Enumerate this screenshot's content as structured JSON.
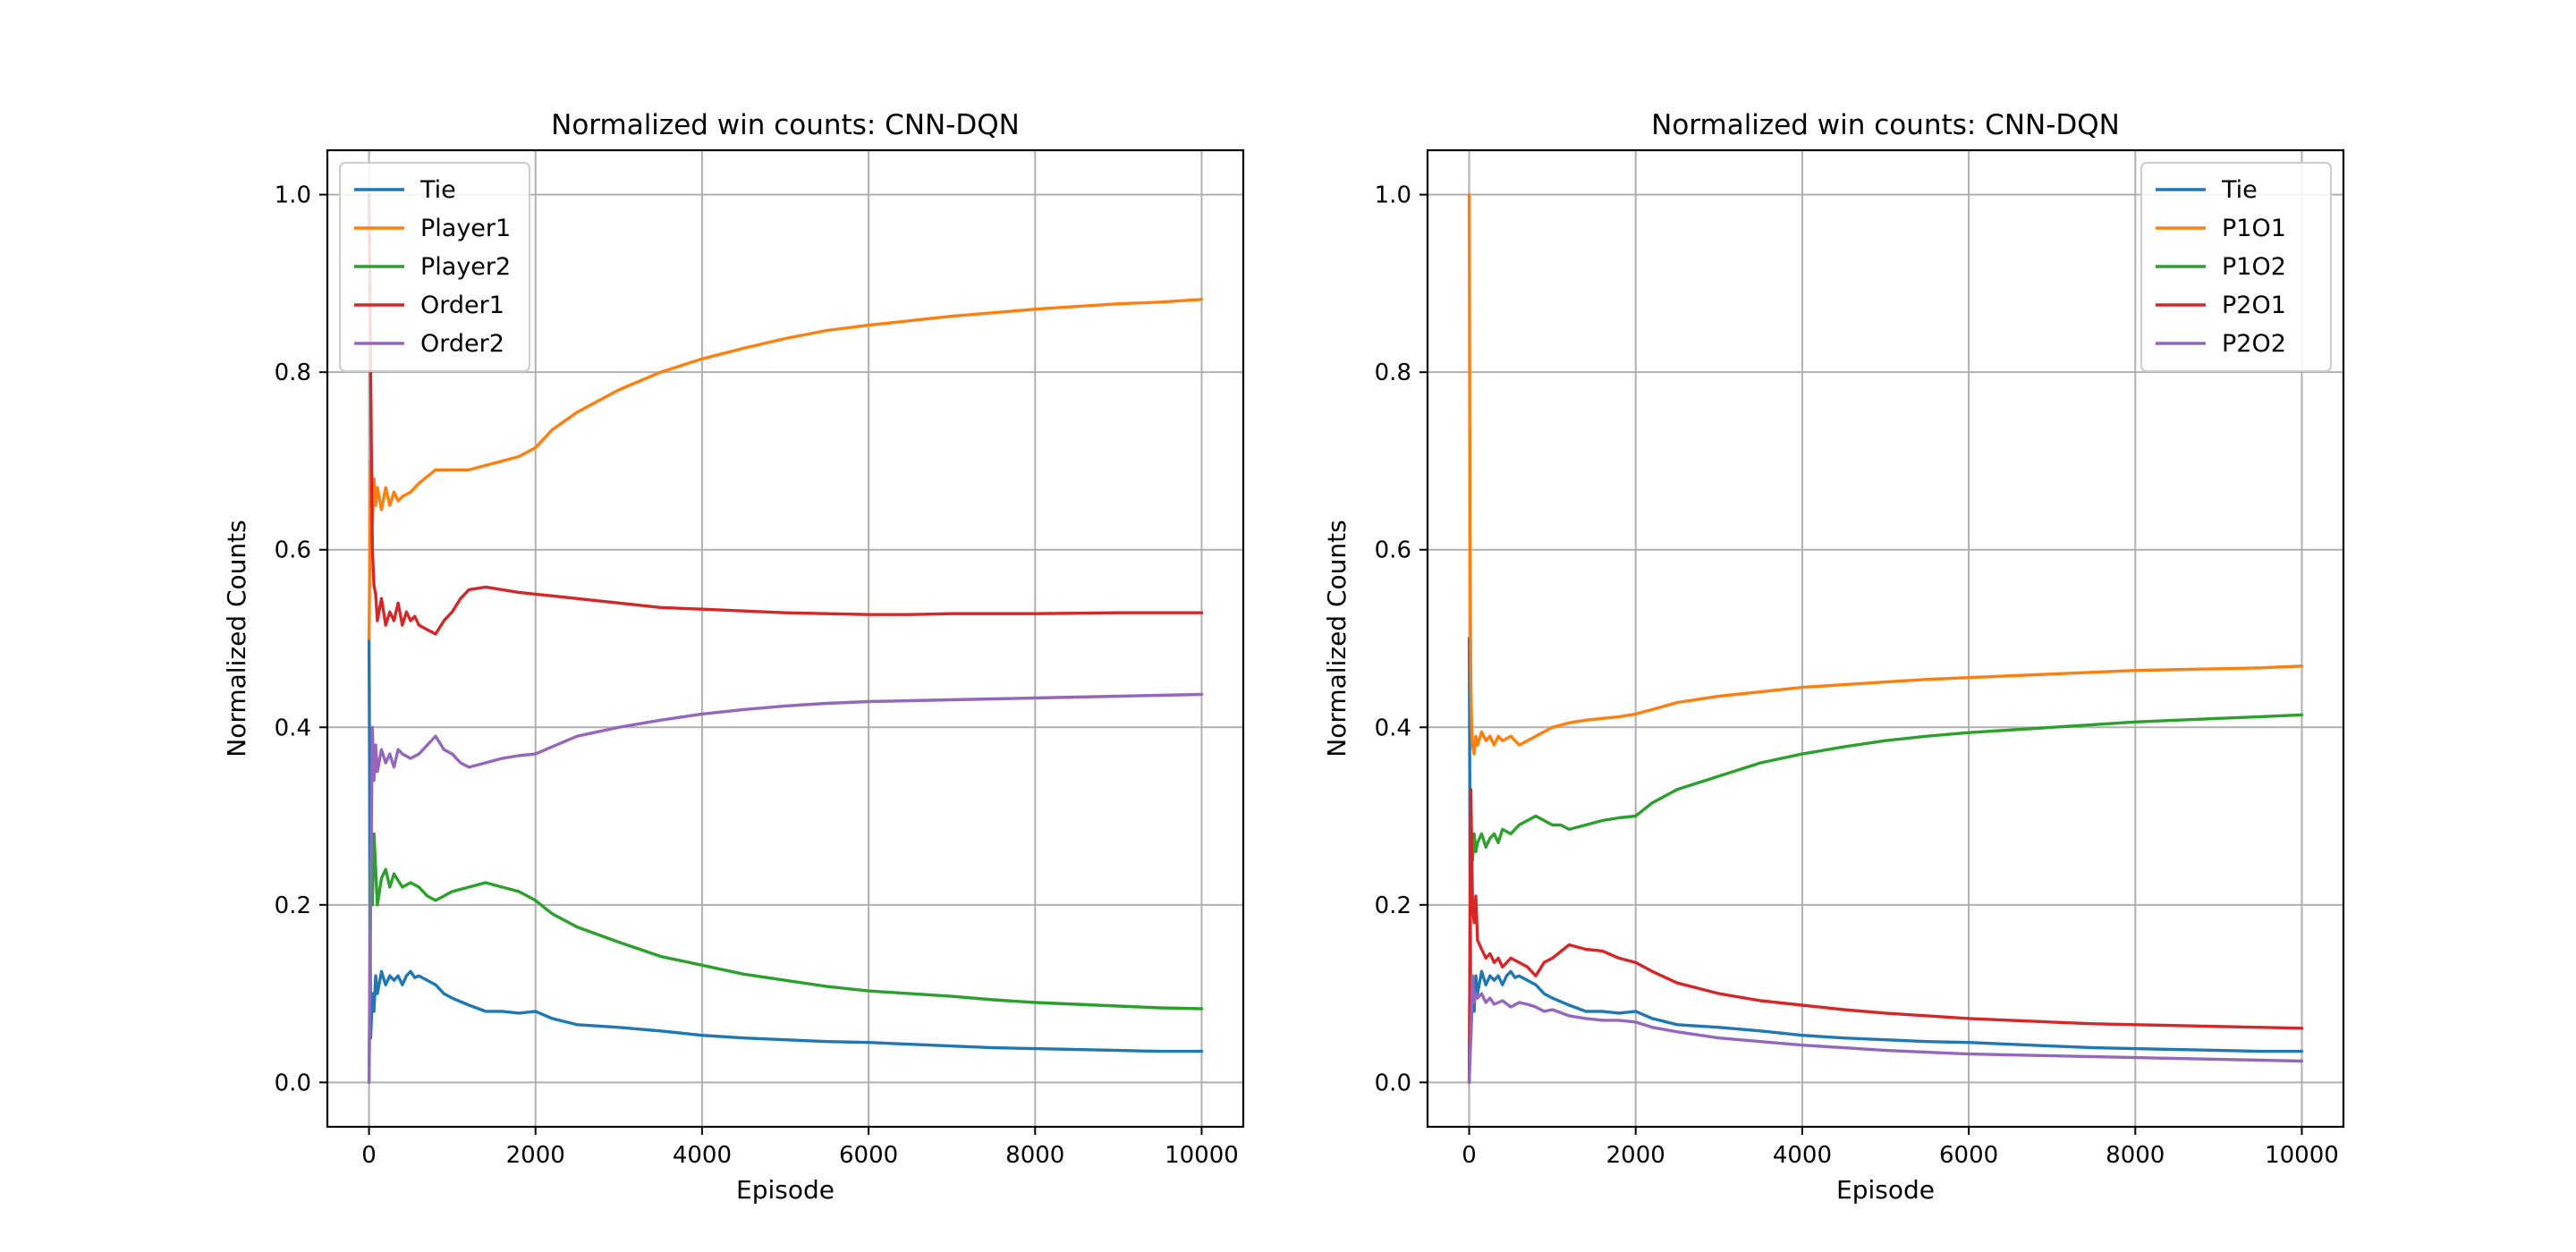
{
  "chart_data": [
    {
      "type": "line",
      "title": "Normalized win counts: CNN-DQN",
      "xlabel": "Episode",
      "ylabel": "Normalized Counts",
      "xlim": [
        -500,
        10500
      ],
      "ylim": [
        -0.05,
        1.05
      ],
      "xticks": [
        0,
        2000,
        4000,
        6000,
        8000,
        10000
      ],
      "yticks": [
        0.0,
        0.2,
        0.4,
        0.6,
        0.8,
        1.0
      ],
      "grid": true,
      "legend_position": "top-left",
      "series": [
        {
          "name": "Tie",
          "color": "#1f77b4",
          "x": [
            1,
            20,
            40,
            60,
            80,
            100,
            150,
            200,
            250,
            300,
            350,
            400,
            450,
            500,
            550,
            600,
            700,
            800,
            900,
            1000,
            1200,
            1400,
            1600,
            1800,
            2000,
            2200,
            2500,
            3000,
            3500,
            4000,
            4500,
            5000,
            5500,
            6000,
            6500,
            7000,
            7500,
            8000,
            8500,
            9000,
            9500,
            10000
          ],
          "y": [
            0.5,
            0.05,
            0.1,
            0.08,
            0.12,
            0.1,
            0.125,
            0.11,
            0.12,
            0.115,
            0.12,
            0.11,
            0.12,
            0.125,
            0.118,
            0.12,
            0.115,
            0.11,
            0.1,
            0.095,
            0.087,
            0.08,
            0.08,
            0.078,
            0.08,
            0.072,
            0.065,
            0.062,
            0.058,
            0.053,
            0.05,
            0.048,
            0.046,
            0.045,
            0.043,
            0.041,
            0.039,
            0.038,
            0.037,
            0.036,
            0.035,
            0.035
          ]
        },
        {
          "name": "Player1",
          "color": "#ff7f0e",
          "x": [
            1,
            20,
            40,
            60,
            80,
            100,
            150,
            200,
            250,
            300,
            350,
            400,
            500,
            600,
            800,
            1000,
            1200,
            1400,
            1600,
            1800,
            2000,
            2200,
            2500,
            3000,
            3500,
            4000,
            4500,
            5000,
            5500,
            6000,
            6500,
            7000,
            7500,
            8000,
            8500,
            9000,
            9500,
            10000
          ],
          "y": [
            0.5,
            0.7,
            0.63,
            0.68,
            0.65,
            0.67,
            0.645,
            0.67,
            0.65,
            0.665,
            0.655,
            0.66,
            0.665,
            0.675,
            0.69,
            0.69,
            0.69,
            0.695,
            0.7,
            0.705,
            0.715,
            0.735,
            0.755,
            0.78,
            0.8,
            0.815,
            0.827,
            0.838,
            0.847,
            0.853,
            0.858,
            0.863,
            0.867,
            0.871,
            0.874,
            0.877,
            0.879,
            0.882
          ]
        },
        {
          "name": "Player2",
          "color": "#2ca02c",
          "x": [
            1,
            20,
            40,
            60,
            80,
            100,
            150,
            200,
            250,
            300,
            400,
            500,
            600,
            700,
            800,
            900,
            1000,
            1200,
            1400,
            1600,
            1800,
            2000,
            2200,
            2500,
            3000,
            3500,
            4000,
            4500,
            5000,
            5500,
            6000,
            6500,
            7000,
            7500,
            8000,
            8500,
            9000,
            9500,
            10000
          ],
          "y": [
            0.0,
            0.25,
            0.2,
            0.28,
            0.24,
            0.2,
            0.23,
            0.24,
            0.22,
            0.235,
            0.22,
            0.225,
            0.22,
            0.21,
            0.205,
            0.21,
            0.215,
            0.22,
            0.225,
            0.22,
            0.215,
            0.205,
            0.19,
            0.175,
            0.158,
            0.142,
            0.132,
            0.122,
            0.115,
            0.108,
            0.103,
            0.1,
            0.097,
            0.093,
            0.09,
            0.088,
            0.086,
            0.084,
            0.083
          ]
        },
        {
          "name": "Order1",
          "color": "#d62728",
          "x": [
            1,
            20,
            40,
            60,
            80,
            100,
            150,
            200,
            250,
            300,
            350,
            400,
            450,
            500,
            550,
            600,
            700,
            800,
            900,
            1000,
            1100,
            1200,
            1400,
            1600,
            1800,
            2000,
            2200,
            2500,
            3000,
            3500,
            4000,
            4500,
            5000,
            5500,
            6000,
            6500,
            7000,
            8000,
            9000,
            10000
          ],
          "y": [
            1.0,
            0.8,
            0.6,
            0.56,
            0.55,
            0.52,
            0.545,
            0.515,
            0.53,
            0.52,
            0.54,
            0.515,
            0.53,
            0.52,
            0.525,
            0.515,
            0.51,
            0.505,
            0.52,
            0.53,
            0.545,
            0.555,
            0.558,
            0.555,
            0.552,
            0.55,
            0.548,
            0.545,
            0.54,
            0.535,
            0.533,
            0.531,
            0.529,
            0.528,
            0.527,
            0.527,
            0.528,
            0.528,
            0.529,
            0.529
          ]
        },
        {
          "name": "Order2",
          "color": "#9467bd",
          "x": [
            1,
            20,
            40,
            60,
            80,
            100,
            150,
            200,
            250,
            300,
            350,
            400,
            500,
            600,
            700,
            800,
            900,
            1000,
            1100,
            1200,
            1400,
            1600,
            1800,
            2000,
            2200,
            2500,
            3000,
            3500,
            4000,
            4500,
            5000,
            5500,
            6000,
            6500,
            7000,
            7500,
            8000,
            8500,
            9000,
            9500,
            10000
          ],
          "y": [
            0.0,
            0.2,
            0.4,
            0.34,
            0.38,
            0.35,
            0.375,
            0.36,
            0.37,
            0.355,
            0.375,
            0.37,
            0.365,
            0.37,
            0.38,
            0.39,
            0.375,
            0.37,
            0.36,
            0.355,
            0.36,
            0.365,
            0.368,
            0.37,
            0.378,
            0.39,
            0.4,
            0.408,
            0.415,
            0.42,
            0.424,
            0.427,
            0.429,
            0.43,
            0.431,
            0.432,
            0.433,
            0.434,
            0.435,
            0.436,
            0.437
          ]
        }
      ]
    },
    {
      "type": "line",
      "title": "Normalized win counts: CNN-DQN",
      "xlabel": "Episode",
      "ylabel": "Normalized Counts",
      "xlim": [
        -500,
        10500
      ],
      "ylim": [
        -0.05,
        1.05
      ],
      "xticks": [
        0,
        2000,
        4000,
        6000,
        8000,
        10000
      ],
      "yticks": [
        0.0,
        0.2,
        0.4,
        0.6,
        0.8,
        1.0
      ],
      "grid": true,
      "legend_position": "top-right",
      "series": [
        {
          "name": "Tie",
          "color": "#1f77b4",
          "x": [
            1,
            20,
            40,
            60,
            80,
            100,
            150,
            200,
            250,
            300,
            350,
            400,
            450,
            500,
            550,
            600,
            700,
            800,
            900,
            1000,
            1200,
            1400,
            1600,
            1800,
            2000,
            2200,
            2500,
            3000,
            3500,
            4000,
            4500,
            5000,
            5500,
            6000,
            6500,
            7000,
            7500,
            8000,
            8500,
            9000,
            9500,
            10000
          ],
          "y": [
            0.5,
            0.05,
            0.1,
            0.08,
            0.12,
            0.1,
            0.125,
            0.11,
            0.12,
            0.115,
            0.12,
            0.11,
            0.12,
            0.125,
            0.118,
            0.12,
            0.115,
            0.11,
            0.1,
            0.095,
            0.087,
            0.08,
            0.08,
            0.078,
            0.08,
            0.072,
            0.065,
            0.062,
            0.058,
            0.053,
            0.05,
            0.048,
            0.046,
            0.045,
            0.043,
            0.041,
            0.039,
            0.038,
            0.037,
            0.036,
            0.035,
            0.035
          ]
        },
        {
          "name": "P1O1",
          "color": "#ff7f0e",
          "x": [
            1,
            10,
            20,
            30,
            40,
            60,
            80,
            100,
            150,
            200,
            250,
            300,
            350,
            400,
            500,
            600,
            700,
            800,
            900,
            1000,
            1200,
            1400,
            1600,
            1800,
            2000,
            2200,
            2500,
            3000,
            3500,
            4000,
            4500,
            5000,
            5500,
            6000,
            6500,
            7000,
            7500,
            8000,
            8500,
            9000,
            9500,
            10000
          ],
          "y": [
            1.0,
            0.6,
            0.45,
            0.4,
            0.38,
            0.37,
            0.39,
            0.38,
            0.395,
            0.385,
            0.39,
            0.38,
            0.39,
            0.385,
            0.39,
            0.38,
            0.385,
            0.39,
            0.395,
            0.4,
            0.405,
            0.408,
            0.41,
            0.412,
            0.415,
            0.42,
            0.428,
            0.435,
            0.44,
            0.445,
            0.448,
            0.451,
            0.454,
            0.456,
            0.458,
            0.46,
            0.462,
            0.464,
            0.465,
            0.466,
            0.467,
            0.469
          ]
        },
        {
          "name": "P1O2",
          "color": "#2ca02c",
          "x": [
            1,
            20,
            40,
            60,
            80,
            100,
            150,
            200,
            250,
            300,
            350,
            400,
            500,
            600,
            700,
            800,
            900,
            1000,
            1100,
            1200,
            1400,
            1600,
            1800,
            2000,
            2200,
            2500,
            3000,
            3500,
            4000,
            4500,
            5000,
            5500,
            6000,
            6500,
            7000,
            7500,
            8000,
            8500,
            9000,
            9500,
            10000
          ],
          "y": [
            0.0,
            0.3,
            0.25,
            0.28,
            0.26,
            0.27,
            0.28,
            0.265,
            0.275,
            0.28,
            0.27,
            0.285,
            0.28,
            0.29,
            0.295,
            0.3,
            0.295,
            0.29,
            0.29,
            0.285,
            0.29,
            0.295,
            0.298,
            0.3,
            0.315,
            0.33,
            0.345,
            0.36,
            0.37,
            0.378,
            0.385,
            0.39,
            0.394,
            0.397,
            0.4,
            0.403,
            0.406,
            0.408,
            0.41,
            0.412,
            0.414
          ]
        },
        {
          "name": "P2O1",
          "color": "#d62728",
          "x": [
            1,
            20,
            40,
            60,
            80,
            100,
            150,
            200,
            250,
            300,
            350,
            400,
            500,
            600,
            700,
            800,
            900,
            1000,
            1200,
            1400,
            1600,
            1800,
            2000,
            2200,
            2500,
            3000,
            3500,
            4000,
            4500,
            5000,
            5500,
            6000,
            6500,
            7000,
            7500,
            8000,
            8500,
            9000,
            9500,
            10000
          ],
          "y": [
            0.0,
            0.33,
            0.2,
            0.18,
            0.21,
            0.16,
            0.15,
            0.14,
            0.145,
            0.135,
            0.14,
            0.13,
            0.14,
            0.135,
            0.13,
            0.12,
            0.135,
            0.14,
            0.155,
            0.15,
            0.148,
            0.14,
            0.135,
            0.125,
            0.112,
            0.1,
            0.092,
            0.087,
            0.082,
            0.078,
            0.075,
            0.072,
            0.07,
            0.068,
            0.066,
            0.065,
            0.064,
            0.063,
            0.062,
            0.061
          ]
        },
        {
          "name": "P2O2",
          "color": "#9467bd",
          "x": [
            1,
            20,
            40,
            60,
            80,
            100,
            150,
            200,
            250,
            300,
            400,
            500,
            600,
            700,
            800,
            900,
            1000,
            1200,
            1400,
            1600,
            1800,
            2000,
            2200,
            2500,
            3000,
            3500,
            4000,
            4500,
            5000,
            5500,
            6000,
            6500,
            7000,
            7500,
            8000,
            8500,
            9000,
            9500,
            10000
          ],
          "y": [
            0.0,
            0.05,
            0.12,
            0.09,
            0.1,
            0.095,
            0.1,
            0.09,
            0.095,
            0.088,
            0.092,
            0.085,
            0.09,
            0.088,
            0.085,
            0.08,
            0.082,
            0.075,
            0.072,
            0.07,
            0.07,
            0.068,
            0.062,
            0.057,
            0.05,
            0.046,
            0.042,
            0.039,
            0.036,
            0.034,
            0.032,
            0.031,
            0.03,
            0.029,
            0.028,
            0.027,
            0.026,
            0.025,
            0.024
          ]
        }
      ]
    }
  ]
}
